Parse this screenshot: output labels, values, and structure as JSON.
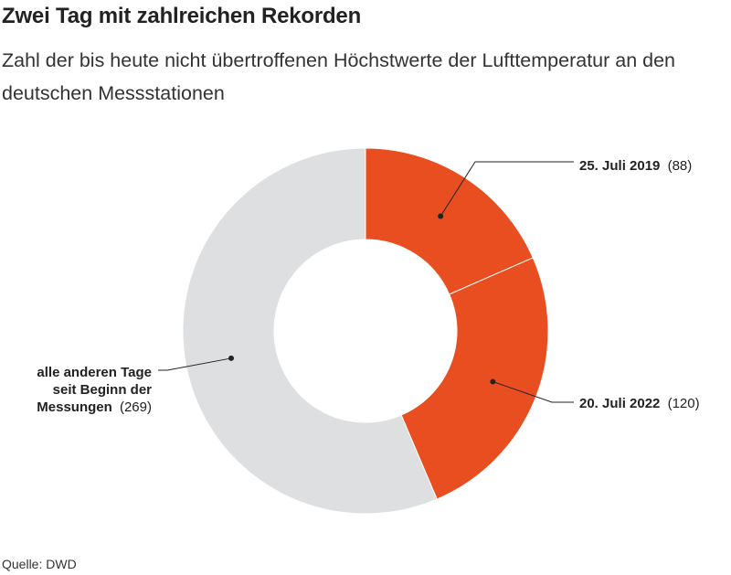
{
  "title": "Zwei Tag mit zahlreichen Rekorden",
  "subtitle": "Zahl der bis heute nicht übertroffenen Höchstwerte der Lufttemperatur an den deutschen Messstationen",
  "source": "Quelle: DWD",
  "colors": {
    "highlight": "#e84e1f",
    "neutral": "#dddfe1",
    "text": "#222222"
  },
  "chart_data": {
    "type": "pie",
    "subtype": "donut",
    "title": "Zwei Tag mit zahlreichen Rekorden",
    "series": [
      {
        "label": "25. Juli 2019",
        "value": 88,
        "value_text": "(88)",
        "color": "#e84e1f"
      },
      {
        "label": "20. Juli 2022",
        "value": 120,
        "value_text": "(120)",
        "color": "#e84e1f"
      },
      {
        "label_lines": [
          "alle anderen Tage",
          "seit Beginn der",
          "Messungen"
        ],
        "value": 269,
        "value_text": "(269)",
        "color": "#dddfe1"
      }
    ]
  }
}
